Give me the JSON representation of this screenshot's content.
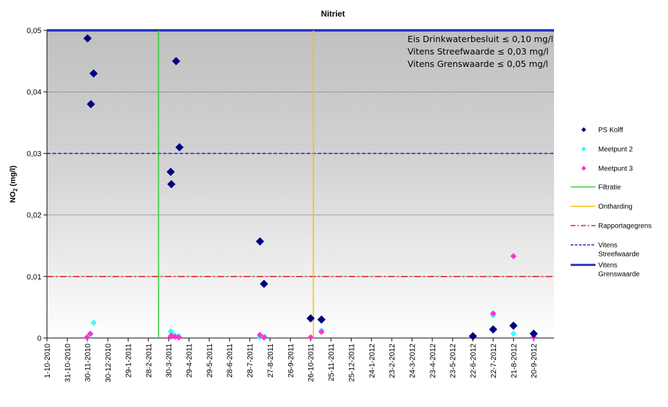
{
  "chart_data": {
    "type": "scatter",
    "title": "Nitriet",
    "ylabel": "NO2 (mg/l)",
    "ylabel_main": "NO",
    "ylabel_sub": "2",
    "ylabel_unit": " (mg/l)",
    "ylim": [
      0,
      0.05
    ],
    "yticks": [
      "0",
      "0,01",
      "0,02",
      "0,03",
      "0,04",
      "0,05"
    ],
    "xlim": [
      "2010-10-01",
      "2012-10-20"
    ],
    "xticks": [
      {
        "date": "2010-10-01",
        "label": "1-10-2010"
      },
      {
        "date": "2010-10-31",
        "label": "31-10-2010"
      },
      {
        "date": "2010-11-30",
        "label": "30-11-2010"
      },
      {
        "date": "2010-12-30",
        "label": "30-12-2010"
      },
      {
        "date": "2011-01-29",
        "label": "29-1-2011"
      },
      {
        "date": "2011-02-28",
        "label": "28-2-2011"
      },
      {
        "date": "2011-03-30",
        "label": "30-3-2011"
      },
      {
        "date": "2011-04-29",
        "label": "29-4-2011"
      },
      {
        "date": "2011-05-29",
        "label": "29-5-2011"
      },
      {
        "date": "2011-06-28",
        "label": "28-6-2011"
      },
      {
        "date": "2011-07-28",
        "label": "28-7-2011"
      },
      {
        "date": "2011-08-27",
        "label": "27-8-2011"
      },
      {
        "date": "2011-09-26",
        "label": "26-9-2011"
      },
      {
        "date": "2011-10-26",
        "label": "26-10-2011"
      },
      {
        "date": "2011-11-25",
        "label": "25-11-2011"
      },
      {
        "date": "2011-12-25",
        "label": "25-12-2011"
      },
      {
        "date": "2012-01-24",
        "label": "24-1-2012"
      },
      {
        "date": "2012-02-23",
        "label": "23-2-2012"
      },
      {
        "date": "2012-03-24",
        "label": "24-3-2012"
      },
      {
        "date": "2012-04-23",
        "label": "23-4-2012"
      },
      {
        "date": "2012-05-23",
        "label": "23-5-2012"
      },
      {
        "date": "2012-06-22",
        "label": "22-6-2012"
      },
      {
        "date": "2012-07-22",
        "label": "22-7-2012"
      },
      {
        "date": "2012-08-21",
        "label": "21-8-2012"
      },
      {
        "date": "2012-09-20",
        "label": "20-9-2012"
      }
    ],
    "grid": true,
    "legend_position": "right",
    "series": [
      {
        "name": "PS Kolff",
        "marker": "diamond",
        "color": "#000080",
        "size": "large",
        "points": [
          {
            "x": "2010-11-30",
            "y": 0.0487
          },
          {
            "x": "2010-12-05",
            "y": 0.038
          },
          {
            "x": "2010-12-09",
            "y": 0.043
          },
          {
            "x": "2011-04-02",
            "y": 0.027
          },
          {
            "x": "2011-04-03",
            "y": 0.025
          },
          {
            "x": "2011-04-10",
            "y": 0.045
          },
          {
            "x": "2011-04-15",
            "y": 0.031
          },
          {
            "x": "2011-08-12",
            "y": 0.0157
          },
          {
            "x": "2011-08-18",
            "y": 0.0088
          },
          {
            "x": "2011-10-26",
            "y": 0.0032
          },
          {
            "x": "2011-11-11",
            "y": 0.003
          },
          {
            "x": "2012-06-22",
            "y": 0.0003
          },
          {
            "x": "2012-07-22",
            "y": 0.0014
          },
          {
            "x": "2012-08-21",
            "y": 0.002
          },
          {
            "x": "2012-09-20",
            "y": 0.0007
          }
        ]
      },
      {
        "name": "Meetpunt 2",
        "marker": "diamond",
        "color": "#33ffff",
        "size": "small",
        "points": [
          {
            "x": "2010-11-30",
            "y": 0.0001
          },
          {
            "x": "2010-12-04",
            "y": 0.0006
          },
          {
            "x": "2010-12-09",
            "y": 0.0025
          },
          {
            "x": "2011-04-02",
            "y": 0.0011
          },
          {
            "x": "2011-04-07",
            "y": 0.0005
          },
          {
            "x": "2011-04-14",
            "y": 0.0003
          },
          {
            "x": "2011-08-12",
            "y": 0.0001
          },
          {
            "x": "2011-08-19",
            "y": 0.0002
          },
          {
            "x": "2011-10-26",
            "y": 0.0001
          },
          {
            "x": "2011-11-11",
            "y": 0.0012
          },
          {
            "x": "2012-06-22",
            "y": 0.0003
          },
          {
            "x": "2012-07-22",
            "y": 0.0037
          },
          {
            "x": "2012-08-21",
            "y": 0.0007
          },
          {
            "x": "2012-09-20",
            "y": 0.0002
          }
        ]
      },
      {
        "name": "Meetpunt 3",
        "marker": "diamond",
        "color": "#ff33cc",
        "size": "small",
        "points": [
          {
            "x": "2010-11-29",
            "y": 0.0001
          },
          {
            "x": "2010-12-04",
            "y": 0.0007
          },
          {
            "x": "2011-04-02",
            "y": 0.0002
          },
          {
            "x": "2011-04-03",
            "y": 0.0004
          },
          {
            "x": "2011-04-09",
            "y": 0.0002
          },
          {
            "x": "2011-04-14",
            "y": 0.0001
          },
          {
            "x": "2011-08-12",
            "y": 0.0005
          },
          {
            "x": "2011-08-18",
            "y": 0.0001
          },
          {
            "x": "2011-10-26",
            "y": 0.0001
          },
          {
            "x": "2011-11-11",
            "y": 0.001
          },
          {
            "x": "2012-06-22",
            "y": 0.0002
          },
          {
            "x": "2012-07-22",
            "y": 0.004
          },
          {
            "x": "2012-08-21",
            "y": 0.0133
          },
          {
            "x": "2012-09-20",
            "y": 0.0001
          }
        ]
      }
    ],
    "vertical_lines": [
      {
        "name": "Filtratie",
        "x": "2011-03-15",
        "color": "#33cc33",
        "style": "solid"
      },
      {
        "name": "Ontharding",
        "x": "2011-10-30",
        "color": "#f5c300",
        "style": "solid"
      }
    ],
    "horizontal_lines": [
      {
        "name": "Rapportagegrens",
        "y": 0.01,
        "color": "#e02020",
        "style": "dashdot"
      },
      {
        "name": "Vitens Streefwaarde",
        "y": 0.03,
        "color": "#1f2fbf",
        "style": "dashed"
      },
      {
        "name": "Vitens Grenswaarde",
        "y": 0.05,
        "color": "#1f2fbf",
        "style": "thick"
      }
    ],
    "legend": [
      {
        "label": "PS Kolff",
        "kind": "diamond",
        "color": "#000080"
      },
      {
        "label": "Meetpunt 2",
        "kind": "diamond",
        "color": "#33ffff"
      },
      {
        "label": "Meetpunt 3",
        "kind": "diamond",
        "color": "#ff33cc"
      },
      {
        "label": "Filtratie",
        "kind": "line",
        "color": "#33cc33",
        "style": "solid"
      },
      {
        "label": "Ontharding",
        "kind": "line",
        "color": "#f5c300",
        "style": "solid"
      },
      {
        "label": "Rapportagegrens",
        "kind": "line",
        "color": "#e02020",
        "style": "dashdot"
      },
      {
        "label": "Vitens Streefwaarde",
        "lines": [
          "Vitens",
          "Streefwaarde"
        ],
        "kind": "line",
        "color": "#1f2fbf",
        "style": "dashed"
      },
      {
        "label": "Vitens Grenswaarde",
        "lines": [
          "Vitens",
          "Grenswaarde"
        ],
        "kind": "line",
        "color": "#1f2fbf",
        "style": "thick"
      }
    ],
    "annotations": [
      "Eis Drinkwaterbesluit ≤ 0,10 mg/l",
      "Vitens Streefwaarde ≤ 0,03 mg/l",
      "Vitens Grenswaarde ≤ 0,05 mg/l"
    ]
  }
}
